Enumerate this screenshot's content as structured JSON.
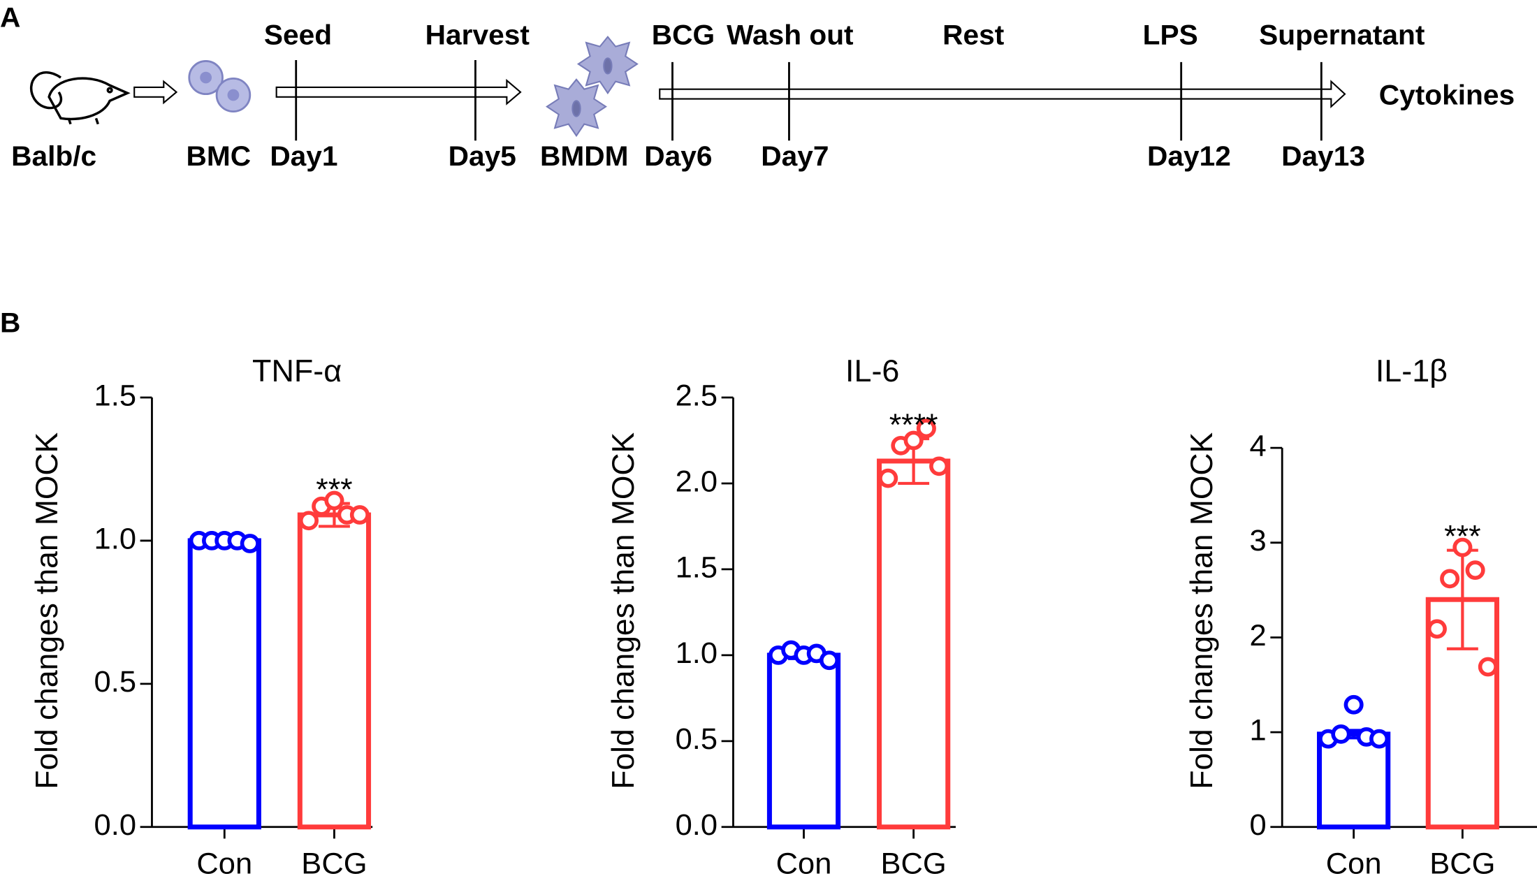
{
  "panel_a": {
    "label": "A",
    "top_labels": [
      "Seed",
      "Harvest",
      "BCG",
      "Wash out",
      "Rest",
      "LPS",
      "Supernatant"
    ],
    "bottom_labels": [
      "Balb/c",
      "BMC",
      "Day1",
      "Day5",
      "BMDM",
      "Day6",
      "Day7",
      "Day12",
      "Day13"
    ],
    "output": "Cytokines"
  },
  "panel_b": {
    "label": "B"
  },
  "chart_data": [
    {
      "type": "bar",
      "title": "TNF-α",
      "y_label": "Fold changes than MOCK",
      "categories": [
        "Con",
        "BCG"
      ],
      "values": [
        1.0,
        1.09
      ],
      "errors": [
        0.01,
        0.04
      ],
      "colors": [
        "#0000ff",
        "#ff3b3b"
      ],
      "points": [
        [
          1.0,
          1.0,
          1.0,
          1.0,
          0.99
        ],
        [
          1.07,
          1.12,
          1.14,
          1.09,
          1.09
        ]
      ],
      "annotation": "***",
      "ylim": [
        0,
        1.5
      ],
      "yticks": [
        {
          "value": 0,
          "label": "0.0"
        },
        0.5,
        {
          "value": 1,
          "label": "1.0"
        },
        1.5
      ]
    },
    {
      "type": "bar",
      "title": "IL-6",
      "y_label": "Fold changes than MOCK",
      "categories": [
        "Con",
        "BCG"
      ],
      "values": [
        1.0,
        2.13
      ],
      "errors": [
        0.02,
        0.13
      ],
      "colors": [
        "#0000ff",
        "#ff3b3b"
      ],
      "points": [
        [
          1.0,
          1.03,
          1.0,
          1.01,
          0.97
        ],
        [
          2.03,
          2.22,
          2.25,
          2.32,
          2.1
        ]
      ],
      "annotation": "****",
      "ylim": [
        0,
        2.5
      ],
      "yticks": [
        {
          "value": 0,
          "label": "0.0"
        },
        0.5,
        {
          "value": 1,
          "label": "1.0"
        },
        1.5,
        {
          "value": 2,
          "label": "2.0"
        },
        2.5
      ]
    },
    {
      "type": "bar",
      "title": "IL-1β",
      "y_label": "Fold changes than MOCK",
      "categories": [
        "Con",
        "BCG"
      ],
      "values": [
        0.98,
        2.4
      ],
      "errors": [
        0.04,
        0.52
      ],
      "colors": [
        "#0000ff",
        "#ff3b3b"
      ],
      "points": [
        [
          0.93,
          0.98,
          1.29,
          0.95,
          0.93
        ],
        [
          2.09,
          2.62,
          2.95,
          2.71,
          1.69
        ]
      ],
      "annotation": "***",
      "ylim": [
        0,
        4
      ],
      "yticks": [
        0,
        1,
        2,
        3,
        4
      ]
    }
  ]
}
